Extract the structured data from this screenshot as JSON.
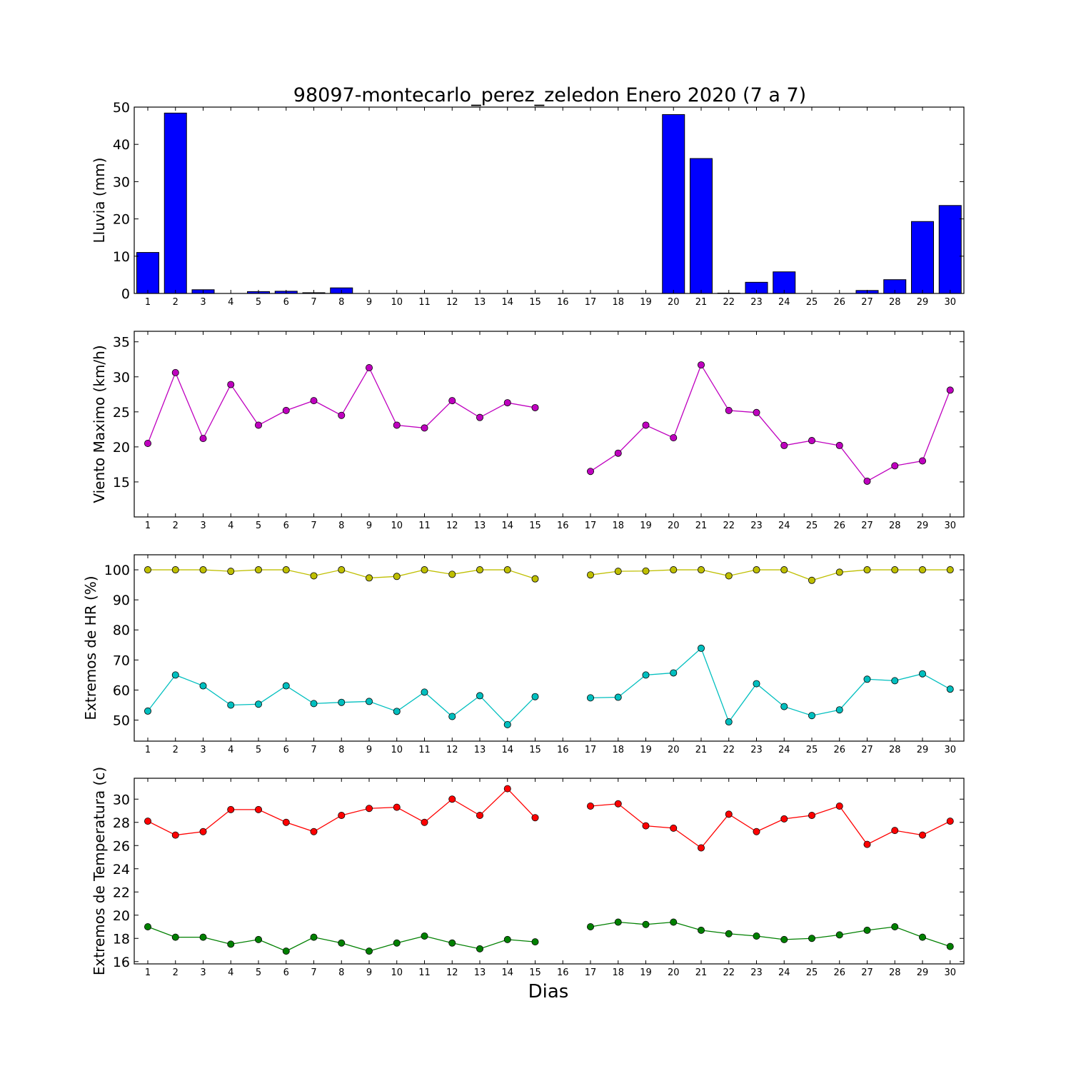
{
  "figure": {
    "title": "98097-montecarlo_perez_zeledon Enero 2020  (7 a 7)",
    "xlabel": "Dias"
  },
  "chart_data": [
    {
      "type": "bar",
      "ylabel": "Lluvia (mm)",
      "ylim": [
        0,
        50
      ],
      "yticks": [
        0,
        10,
        20,
        30,
        40,
        50
      ],
      "categories": [
        "1",
        "2",
        "3",
        "4",
        "5",
        "6",
        "7",
        "8",
        "9",
        "10",
        "11",
        "12",
        "13",
        "14",
        "15",
        "16",
        "17",
        "18",
        "19",
        "20",
        "21",
        "22",
        "23",
        "24",
        "25",
        "26",
        "27",
        "28",
        "29",
        "30"
      ],
      "series": [
        {
          "color": "#0000ff",
          "values": [
            11.0,
            48.4,
            1.0,
            0.0,
            0.5,
            0.6,
            0.2,
            1.5,
            0.0,
            0.0,
            0.0,
            0.0,
            0.0,
            0.0,
            0.0,
            0.0,
            0.0,
            0.0,
            0.0,
            48.0,
            36.2,
            0.1,
            3.0,
            5.8,
            0.0,
            0.0,
            0.8,
            3.7,
            19.3,
            23.6
          ]
        }
      ],
      "grid": false
    },
    {
      "type": "line",
      "ylabel": "Viento Maximo (km/h)",
      "ylim": [
        10,
        36.5
      ],
      "yticks": [
        15,
        20,
        25,
        30,
        35
      ],
      "categories": [
        "1",
        "2",
        "3",
        "4",
        "5",
        "6",
        "7",
        "8",
        "9",
        "10",
        "11",
        "12",
        "13",
        "14",
        "15",
        "16",
        "17",
        "18",
        "19",
        "20",
        "21",
        "22",
        "23",
        "24",
        "25",
        "26",
        "27",
        "28",
        "29",
        "30"
      ],
      "series": [
        {
          "color": "#bf00bf",
          "values": [
            20.5,
            30.6,
            21.2,
            28.9,
            23.1,
            25.2,
            26.6,
            24.5,
            31.3,
            23.1,
            22.7,
            26.6,
            24.2,
            26.3,
            25.6,
            null,
            16.5,
            19.1,
            23.1,
            21.3,
            31.7,
            25.2,
            24.9,
            20.2,
            20.9,
            20.2,
            15.1,
            17.3,
            18.0,
            28.1
          ]
        }
      ],
      "grid": false
    },
    {
      "type": "line",
      "ylabel": "Extremos de HR (%)",
      "ylim": [
        43,
        105
      ],
      "yticks": [
        50,
        60,
        70,
        80,
        90,
        100
      ],
      "categories": [
        "1",
        "2",
        "3",
        "4",
        "5",
        "6",
        "7",
        "8",
        "9",
        "10",
        "11",
        "12",
        "13",
        "14",
        "15",
        "16",
        "17",
        "18",
        "19",
        "20",
        "21",
        "22",
        "23",
        "24",
        "25",
        "26",
        "27",
        "28",
        "29",
        "30"
      ],
      "series": [
        {
          "color": "#bfbf00",
          "values": [
            100,
            100,
            100,
            99.5,
            100,
            100,
            98,
            100,
            97.3,
            97.8,
            100,
            98.5,
            100,
            100,
            97,
            null,
            98.3,
            99.5,
            99.6,
            100,
            100,
            98,
            100,
            100,
            96.5,
            99.2,
            100,
            100,
            100,
            100
          ]
        },
        {
          "color": "#00bfbf",
          "values": [
            53,
            65,
            61.4,
            55,
            55.3,
            61.4,
            55.5,
            55.9,
            56.2,
            52.9,
            59.3,
            51.2,
            58.1,
            48.5,
            57.8,
            null,
            57.4,
            57.6,
            65,
            65.7,
            73.9,
            49.4,
            62.1,
            54.5,
            51.5,
            53.4,
            63.6,
            63.1,
            65.4,
            60.3
          ]
        }
      ],
      "grid": false
    },
    {
      "type": "line",
      "ylabel": "Extremos de Temperatura (c)",
      "ylim": [
        15.8,
        31.8
      ],
      "yticks": [
        16,
        18,
        20,
        22,
        24,
        26,
        28,
        30
      ],
      "categories": [
        "1",
        "2",
        "3",
        "4",
        "5",
        "6",
        "7",
        "8",
        "9",
        "10",
        "11",
        "12",
        "13",
        "14",
        "15",
        "16",
        "17",
        "18",
        "19",
        "20",
        "21",
        "22",
        "23",
        "24",
        "25",
        "26",
        "27",
        "28",
        "29",
        "30"
      ],
      "series": [
        {
          "color": "#ff0000",
          "values": [
            28.1,
            26.9,
            27.2,
            29.1,
            29.1,
            28.0,
            27.2,
            28.6,
            29.2,
            29.3,
            28.0,
            30.0,
            28.6,
            30.9,
            28.4,
            null,
            29.4,
            29.6,
            27.7,
            27.5,
            25.8,
            28.7,
            27.2,
            28.3,
            28.6,
            29.4,
            26.1,
            27.3,
            26.9,
            28.1
          ]
        },
        {
          "color": "#008000",
          "values": [
            19.0,
            18.1,
            18.1,
            17.5,
            17.9,
            16.9,
            18.1,
            17.6,
            16.9,
            17.6,
            18.2,
            17.6,
            17.1,
            17.9,
            17.7,
            null,
            19.0,
            19.4,
            19.2,
            19.4,
            18.7,
            18.4,
            18.2,
            17.9,
            18.0,
            18.3,
            18.7,
            19.0,
            18.1,
            17.3
          ]
        }
      ],
      "grid": false
    }
  ]
}
